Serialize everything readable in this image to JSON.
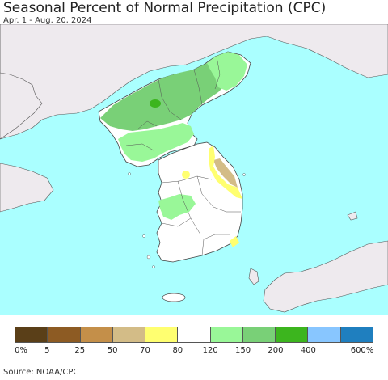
{
  "title": "Seasonal Percent of Normal Precipitation (CPC)",
  "subtitle": "Apr. 1 - Aug. 20, 2024",
  "source": "Source: NOAA/CPC",
  "colors": {
    "sea": "#aaffff",
    "foreign_land": "#eeeaee",
    "korea_base": "#ffffff",
    "border": "#444444"
  },
  "legend": {
    "colors": [
      "#5a3f18",
      "#8d5b23",
      "#c48f49",
      "#d3bc87",
      "#ffff70",
      "#ffffff",
      "#99f798",
      "#79d077",
      "#3cb51e",
      "#88c6ff",
      "#1f7fbf"
    ],
    "labels": [
      "0%",
      "5",
      "25",
      "50",
      "70",
      "80",
      "120",
      "150",
      "200",
      "400",
      "600%"
    ]
  }
}
